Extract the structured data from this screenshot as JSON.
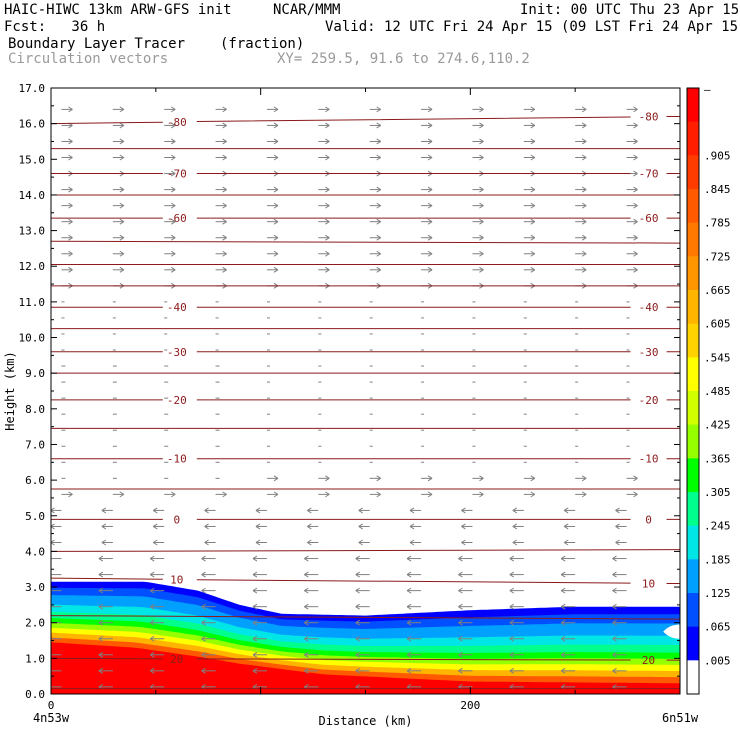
{
  "header": {
    "model": "HAIC-HIWC 13km ARW-GFS init",
    "org": "NCAR/MMM",
    "init": "Init: 00 UTC Thu 23 Apr 15",
    "fcst": "Fcst:   36 h",
    "valid": "Valid: 12 UTC Fri 24 Apr 15 (09 LST Fri 24 Apr 15)",
    "field": "Boundary Layer Tracer",
    "units": "(fraction)",
    "vectors": "Circulation vectors",
    "xy": "XY= 259.5, 91.6 to 274.6,110.2"
  },
  "chart_data": {
    "type": "heatmap",
    "xlabel": "Distance (km)",
    "ylabel": "Height (km)",
    "xlim": [
      0,
      300
    ],
    "ylim": [
      0,
      17
    ],
    "x_ticks": [
      0,
      200
    ],
    "x_tick_labels": [
      "0",
      "200"
    ],
    "x_end_labels": [
      "4n53w",
      "6n51w"
    ],
    "y_ticks": [
      0,
      1,
      2,
      3,
      4,
      5,
      6,
      7,
      8,
      9,
      10,
      11,
      12,
      13,
      14,
      15,
      16,
      17
    ],
    "y_tick_labels": [
      "0.0",
      "1.0",
      "2.0",
      "3.0",
      "4.0",
      "5.0",
      "6.0",
      "7.0",
      "8.0",
      "9.0",
      "10.0",
      "11.0",
      "12.0",
      "13.0",
      "14.0",
      "15.0",
      "16.0",
      "17.0"
    ],
    "colorbar": {
      "labels": [
        "–",
        ".905",
        ".845",
        ".785",
        ".725",
        ".665",
        ".605",
        ".545",
        ".485",
        ".425",
        ".365",
        ".305",
        ".245",
        ".185",
        ".125",
        ".065",
        ".005"
      ],
      "colors": [
        "#ff0000",
        "#ff1e00",
        "#ff3c00",
        "#ff5a00",
        "#ff7800",
        "#ff9600",
        "#ffb400",
        "#ffd200",
        "#ffff00",
        "#d2ff00",
        "#96ff00",
        "#00ff00",
        "#00ff8c",
        "#00e6e6",
        "#00a0ff",
        "#0050ff",
        "#0000ff",
        "#ffffff"
      ]
    },
    "tracer_layer": {
      "top_km": [
        [
          0,
          3.15
        ],
        [
          45,
          3.15
        ],
        [
          70,
          2.9
        ],
        [
          90,
          2.5
        ],
        [
          110,
          2.25
        ],
        [
          150,
          2.2
        ],
        [
          200,
          2.35
        ],
        [
          250,
          2.45
        ],
        [
          300,
          2.45
        ]
      ],
      "red_top_km": [
        [
          0,
          1.45
        ],
        [
          40,
          1.3
        ],
        [
          70,
          1.05
        ],
        [
          90,
          0.85
        ],
        [
          130,
          0.55
        ],
        [
          200,
          0.35
        ],
        [
          300,
          0.3
        ]
      ],
      "hole_km": {
        "x0": 292,
        "x1": 300,
        "y0": 1.55,
        "y1": 1.95
      }
    },
    "temperature_contours": {
      "color": "#8b1a1a",
      "levels": [
        {
          "label": "-80",
          "heights_km": [
            16.0,
            16.2
          ],
          "labeled": true
        },
        {
          "label": "",
          "heights_km": [
            15.3,
            15.3
          ],
          "labeled": false
        },
        {
          "label": "-70",
          "heights_km": [
            14.6,
            14.6
          ],
          "labeled": true
        },
        {
          "label": "",
          "heights_km": [
            14.0,
            14.0
          ],
          "labeled": false
        },
        {
          "label": "-60",
          "heights_km": [
            13.35,
            13.35
          ],
          "labeled": true
        },
        {
          "label": "",
          "heights_km": [
            12.7,
            12.65
          ],
          "labeled": false
        },
        {
          "label": "",
          "heights_km": [
            12.05,
            12.05
          ],
          "labeled": false
        },
        {
          "label": "",
          "heights_km": [
            11.45,
            11.45
          ],
          "labeled": false
        },
        {
          "label": "-40",
          "heights_km": [
            10.85,
            10.85
          ],
          "labeled": true
        },
        {
          "label": "",
          "heights_km": [
            10.25,
            10.25
          ],
          "labeled": false
        },
        {
          "label": "-30",
          "heights_km": [
            9.6,
            9.6
          ],
          "labeled": true
        },
        {
          "label": "",
          "heights_km": [
            9.0,
            9.0
          ],
          "labeled": false
        },
        {
          "label": "-20",
          "heights_km": [
            8.25,
            8.25
          ],
          "labeled": true
        },
        {
          "label": "",
          "heights_km": [
            7.45,
            7.45
          ],
          "labeled": false
        },
        {
          "label": "-10",
          "heights_km": [
            6.6,
            6.6
          ],
          "labeled": true
        },
        {
          "label": "",
          "heights_km": [
            5.75,
            5.75
          ],
          "labeled": false
        },
        {
          "label": "0",
          "heights_km": [
            4.9,
            4.9
          ],
          "labeled": true
        },
        {
          "label": "",
          "heights_km": [
            4.0,
            4.05
          ],
          "labeled": false
        },
        {
          "label": "10",
          "heights_km": [
            3.25,
            3.1
          ],
          "labeled": true
        },
        {
          "label": "",
          "heights_km": [
            2.2,
            2.1
          ],
          "labeled": false
        },
        {
          "label": "20",
          "heights_km": [
            1.0,
            0.95
          ],
          "labeled": true
        },
        {
          "label": "",
          "heights_km": [
            0.15,
            0.15
          ],
          "labeled": false
        }
      ]
    },
    "vectors": {
      "color": "#808080",
      "upper_direction": "east",
      "lower_direction": "west",
      "reversal_height_km": 5.5
    }
  }
}
